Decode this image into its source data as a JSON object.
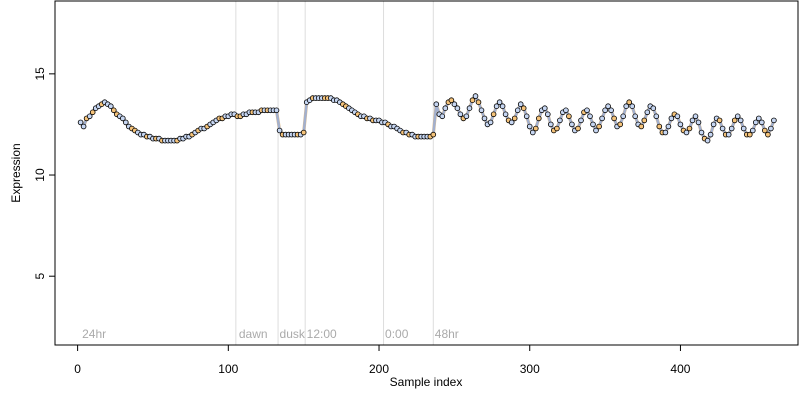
{
  "chart_data": {
    "type": "scatter",
    "title": "",
    "xlabel": "Sample index",
    "ylabel": "Expression",
    "xlim": [
      -15,
      478
    ],
    "ylim": [
      1.6,
      18.6
    ],
    "xticks": [
      0,
      100,
      200,
      300,
      400
    ],
    "yticks": [
      5,
      10,
      15
    ],
    "grid": false,
    "colors": {
      "fit_line": "#9aaed6",
      "fit_line_alt": "#e8b36a",
      "point_light": "#c6d6f2",
      "point_warm": "#f5c37a",
      "point_edge": "#000000",
      "divider": "#dddddd",
      "phase_text": "#aaaaaa"
    },
    "phase_dividers": [
      105,
      133,
      151,
      203,
      236
    ],
    "phase_labels": [
      {
        "x": 3,
        "text": "24hr"
      },
      {
        "x": 107,
        "text": "dawn"
      },
      {
        "x": 134,
        "text": "dusk"
      },
      {
        "x": 152,
        "text": "12:00"
      },
      {
        "x": 204,
        "text": "0:00"
      },
      {
        "x": 237,
        "text": "48hr"
      }
    ],
    "series": [
      {
        "points": [
          [
            2,
            12.6
          ],
          [
            4,
            12.4
          ],
          [
            6,
            12.8
          ],
          [
            8,
            12.9
          ],
          [
            10,
            13.1
          ],
          [
            12,
            13.3
          ],
          [
            14,
            13.4
          ],
          [
            16,
            13.5
          ],
          [
            18,
            13.6
          ],
          [
            20,
            13.5
          ],
          [
            22,
            13.4
          ],
          [
            24,
            13.2
          ],
          [
            26,
            13.0
          ],
          [
            28,
            12.9
          ],
          [
            30,
            12.8
          ],
          [
            32,
            12.6
          ],
          [
            34,
            12.4
          ],
          [
            36,
            12.3
          ],
          [
            38,
            12.2
          ],
          [
            40,
            12.1
          ],
          [
            42,
            12.0
          ],
          [
            44,
            12.0
          ],
          [
            46,
            11.9
          ],
          [
            48,
            11.9
          ],
          [
            50,
            11.8
          ],
          [
            52,
            11.8
          ],
          [
            54,
            11.8
          ],
          [
            56,
            11.7
          ],
          [
            58,
            11.7
          ],
          [
            60,
            11.7
          ],
          [
            62,
            11.7
          ],
          [
            64,
            11.7
          ],
          [
            66,
            11.7
          ],
          [
            68,
            11.8
          ],
          [
            70,
            11.8
          ],
          [
            72,
            11.9
          ],
          [
            74,
            11.9
          ],
          [
            76,
            12.0
          ],
          [
            78,
            12.1
          ],
          [
            80,
            12.2
          ],
          [
            82,
            12.3
          ],
          [
            84,
            12.3
          ],
          [
            86,
            12.4
          ],
          [
            88,
            12.5
          ],
          [
            90,
            12.6
          ],
          [
            92,
            12.7
          ],
          [
            94,
            12.8
          ],
          [
            96,
            12.8
          ],
          [
            98,
            12.9
          ],
          [
            100,
            12.9
          ],
          [
            102,
            13.0
          ],
          [
            104,
            13.0
          ],
          [
            106,
            12.9
          ],
          [
            108,
            12.9
          ],
          [
            110,
            13.0
          ],
          [
            112,
            13.0
          ],
          [
            114,
            13.1
          ],
          [
            116,
            13.1
          ],
          [
            118,
            13.1
          ],
          [
            120,
            13.1
          ],
          [
            122,
            13.2
          ],
          [
            124,
            13.2
          ],
          [
            126,
            13.2
          ],
          [
            128,
            13.2
          ],
          [
            130,
            13.2
          ],
          [
            132,
            13.2
          ],
          [
            134,
            12.2
          ],
          [
            136,
            12.0
          ],
          [
            138,
            12.0
          ],
          [
            140,
            12.0
          ],
          [
            142,
            12.0
          ],
          [
            144,
            12.0
          ],
          [
            146,
            12.0
          ],
          [
            148,
            12.0
          ],
          [
            150,
            12.1
          ],
          [
            152,
            13.6
          ],
          [
            154,
            13.7
          ],
          [
            156,
            13.8
          ],
          [
            158,
            13.8
          ],
          [
            160,
            13.8
          ],
          [
            162,
            13.8
          ],
          [
            164,
            13.8
          ],
          [
            166,
            13.8
          ],
          [
            168,
            13.8
          ],
          [
            170,
            13.7
          ],
          [
            172,
            13.7
          ],
          [
            174,
            13.6
          ],
          [
            176,
            13.5
          ],
          [
            178,
            13.4
          ],
          [
            180,
            13.3
          ],
          [
            182,
            13.2
          ],
          [
            184,
            13.1
          ],
          [
            186,
            13.0
          ],
          [
            188,
            12.9
          ],
          [
            190,
            12.9
          ],
          [
            192,
            12.8
          ],
          [
            194,
            12.8
          ],
          [
            196,
            12.7
          ],
          [
            198,
            12.7
          ],
          [
            200,
            12.7
          ],
          [
            202,
            12.6
          ],
          [
            204,
            12.6
          ],
          [
            206,
            12.5
          ],
          [
            208,
            12.4
          ],
          [
            210,
            12.4
          ],
          [
            212,
            12.3
          ],
          [
            214,
            12.2
          ],
          [
            216,
            12.1
          ],
          [
            218,
            12.1
          ],
          [
            220,
            12.0
          ],
          [
            222,
            12.0
          ],
          [
            224,
            11.9
          ],
          [
            226,
            11.9
          ],
          [
            228,
            11.9
          ],
          [
            230,
            11.9
          ],
          [
            232,
            11.9
          ],
          [
            234,
            11.9
          ],
          [
            236,
            12.0
          ],
          [
            238,
            13.5
          ],
          [
            240,
            13.0
          ],
          [
            242,
            12.9
          ],
          [
            244,
            13.3
          ],
          [
            246,
            13.6
          ],
          [
            248,
            13.7
          ],
          [
            250,
            13.5
          ],
          [
            252,
            13.3
          ],
          [
            254,
            13.0
          ],
          [
            256,
            12.8
          ],
          [
            258,
            12.9
          ],
          [
            260,
            13.3
          ],
          [
            262,
            13.7
          ],
          [
            264,
            13.9
          ],
          [
            266,
            13.6
          ],
          [
            268,
            13.2
          ],
          [
            270,
            12.8
          ],
          [
            272,
            12.5
          ],
          [
            274,
            12.6
          ],
          [
            276,
            13.0
          ],
          [
            278,
            13.4
          ],
          [
            280,
            13.6
          ],
          [
            282,
            13.4
          ],
          [
            284,
            13.0
          ],
          [
            286,
            12.7
          ],
          [
            288,
            12.6
          ],
          [
            290,
            12.8
          ],
          [
            292,
            13.2
          ],
          [
            294,
            13.5
          ],
          [
            296,
            13.3
          ],
          [
            298,
            12.9
          ],
          [
            300,
            12.4
          ],
          [
            302,
            12.1
          ],
          [
            304,
            12.3
          ],
          [
            306,
            12.8
          ],
          [
            308,
            13.2
          ],
          [
            310,
            13.3
          ],
          [
            312,
            13.0
          ],
          [
            314,
            12.5
          ],
          [
            316,
            12.2
          ],
          [
            318,
            12.3
          ],
          [
            320,
            12.7
          ],
          [
            322,
            13.1
          ],
          [
            324,
            13.2
          ],
          [
            326,
            12.9
          ],
          [
            328,
            12.5
          ],
          [
            330,
            12.2
          ],
          [
            332,
            12.3
          ],
          [
            334,
            12.7
          ],
          [
            336,
            13.1
          ],
          [
            338,
            13.2
          ],
          [
            340,
            12.9
          ],
          [
            342,
            12.5
          ],
          [
            344,
            12.2
          ],
          [
            346,
            12.4
          ],
          [
            348,
            12.8
          ],
          [
            350,
            13.2
          ],
          [
            352,
            13.4
          ],
          [
            354,
            13.2
          ],
          [
            356,
            12.8
          ],
          [
            358,
            12.4
          ],
          [
            360,
            12.5
          ],
          [
            362,
            12.9
          ],
          [
            364,
            13.4
          ],
          [
            366,
            13.6
          ],
          [
            368,
            13.4
          ],
          [
            370,
            12.9
          ],
          [
            372,
            12.5
          ],
          [
            374,
            12.4
          ],
          [
            376,
            12.7
          ],
          [
            378,
            13.1
          ],
          [
            380,
            13.4
          ],
          [
            382,
            13.3
          ],
          [
            384,
            12.9
          ],
          [
            386,
            12.4
          ],
          [
            388,
            12.1
          ],
          [
            390,
            12.1
          ],
          [
            392,
            12.4
          ],
          [
            394,
            12.8
          ],
          [
            396,
            13.0
          ],
          [
            398,
            12.9
          ],
          [
            400,
            12.5
          ],
          [
            402,
            12.2
          ],
          [
            404,
            12.1
          ],
          [
            406,
            12.3
          ],
          [
            408,
            12.7
          ],
          [
            410,
            12.9
          ],
          [
            412,
            12.6
          ],
          [
            414,
            12.1
          ],
          [
            416,
            11.8
          ],
          [
            418,
            11.7
          ],
          [
            420,
            12.0
          ],
          [
            422,
            12.5
          ],
          [
            424,
            12.8
          ],
          [
            426,
            12.7
          ],
          [
            428,
            12.3
          ],
          [
            430,
            12.0
          ],
          [
            432,
            12.0
          ],
          [
            434,
            12.3
          ],
          [
            436,
            12.7
          ],
          [
            438,
            12.9
          ],
          [
            440,
            12.7
          ],
          [
            442,
            12.3
          ],
          [
            444,
            12.0
          ],
          [
            446,
            12.0
          ],
          [
            448,
            12.2
          ],
          [
            450,
            12.6
          ],
          [
            452,
            12.8
          ],
          [
            454,
            12.6
          ],
          [
            456,
            12.2
          ],
          [
            458,
            12.0
          ],
          [
            460,
            12.3
          ],
          [
            462,
            12.7
          ]
        ]
      }
    ]
  }
}
